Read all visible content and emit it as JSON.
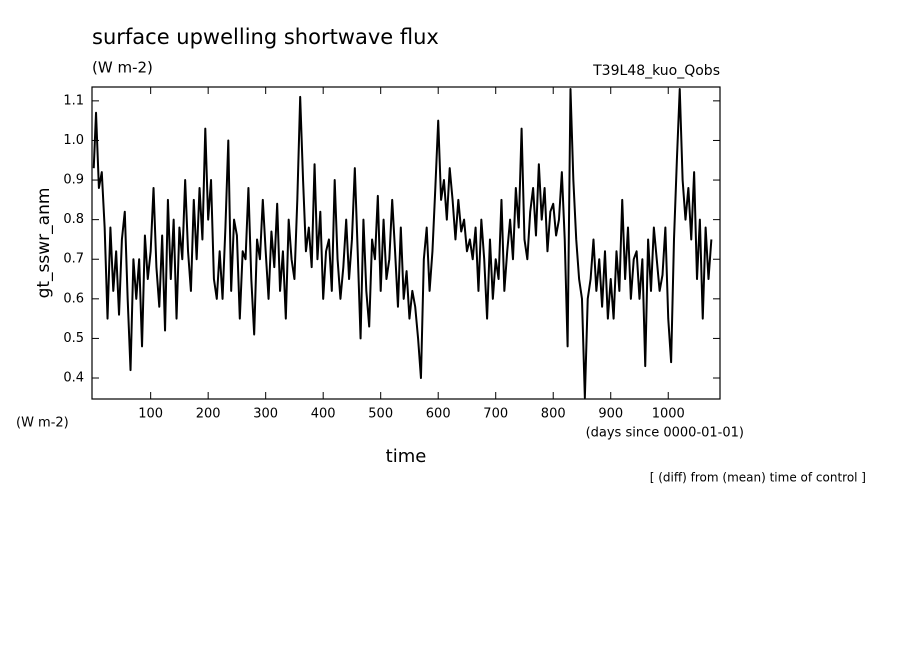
{
  "chart_data": {
    "type": "line",
    "title": "surface upwelling shortwave flux",
    "subtitle": "(W m-2)",
    "run_label": "T39L48_kuo_Qobs",
    "y_label": "gt_sswr_anm",
    "y_unit": "(W m-2)",
    "x_label": "time",
    "x_unit": "(days since 0000-01-01)",
    "note": "[ (diff) from (mean) time of control ]",
    "color": "#000000",
    "xlim": [
      -2,
      1090
    ],
    "ylim": [
      0.347,
      1.135
    ],
    "xticks": [
      100,
      200,
      300,
      400,
      500,
      600,
      700,
      800,
      900,
      1000
    ],
    "yticks": [
      0.4,
      0.5,
      0.6,
      0.7,
      0.8,
      0.9,
      {
        "value": 1,
        "label": "1.0"
      },
      1.1
    ],
    "x": [
      1,
      5,
      10,
      15,
      20,
      25,
      30,
      35,
      40,
      45,
      50,
      55,
      60,
      65,
      70,
      75,
      80,
      85,
      90,
      95,
      100,
      105,
      110,
      115,
      120,
      125,
      130,
      135,
      140,
      145,
      150,
      155,
      160,
      165,
      170,
      175,
      180,
      185,
      190,
      195,
      200,
      205,
      210,
      215,
      220,
      225,
      230,
      235,
      240,
      245,
      250,
      255,
      260,
      265,
      270,
      275,
      280,
      285,
      290,
      295,
      300,
      305,
      310,
      315,
      320,
      325,
      330,
      335,
      340,
      345,
      350,
      355,
      360,
      365,
      370,
      375,
      380,
      385,
      390,
      395,
      400,
      405,
      410,
      415,
      420,
      425,
      430,
      435,
      440,
      445,
      450,
      455,
      460,
      465,
      470,
      475,
      480,
      485,
      490,
      495,
      500,
      505,
      510,
      515,
      520,
      525,
      530,
      535,
      540,
      545,
      550,
      555,
      560,
      565,
      570,
      575,
      580,
      585,
      590,
      595,
      600,
      605,
      610,
      615,
      620,
      625,
      630,
      635,
      640,
      645,
      650,
      655,
      660,
      665,
      670,
      675,
      680,
      685,
      690,
      695,
      700,
      705,
      710,
      715,
      720,
      725,
      730,
      735,
      740,
      745,
      750,
      755,
      760,
      765,
      770,
      775,
      780,
      785,
      790,
      795,
      800,
      805,
      810,
      815,
      820,
      825,
      830,
      835,
      840,
      845,
      850,
      855,
      860,
      865,
      870,
      875,
      880,
      885,
      890,
      895,
      900,
      905,
      910,
      915,
      920,
      925,
      930,
      935,
      940,
      945,
      950,
      955,
      960,
      965,
      970,
      975,
      980,
      985,
      990,
      995,
      1000,
      1005,
      1010,
      1015,
      1020,
      1025,
      1030,
      1035,
      1040,
      1045,
      1050,
      1055,
      1060,
      1065,
      1070,
      1075
    ],
    "values": [
      0.93,
      1.07,
      0.88,
      0.92,
      0.78,
      0.55,
      0.78,
      0.62,
      0.72,
      0.56,
      0.75,
      0.82,
      0.6,
      0.42,
      0.7,
      0.6,
      0.7,
      0.48,
      0.76,
      0.65,
      0.72,
      0.88,
      0.68,
      0.58,
      0.76,
      0.52,
      0.85,
      0.65,
      0.8,
      0.55,
      0.78,
      0.7,
      0.9,
      0.72,
      0.62,
      0.85,
      0.7,
      0.88,
      0.75,
      1.03,
      0.8,
      0.9,
      0.65,
      0.6,
      0.72,
      0.6,
      0.78,
      1.0,
      0.62,
      0.8,
      0.76,
      0.55,
      0.72,
      0.7,
      0.88,
      0.65,
      0.51,
      0.75,
      0.7,
      0.85,
      0.72,
      0.6,
      0.77,
      0.68,
      0.84,
      0.62,
      0.72,
      0.55,
      0.8,
      0.7,
      0.65,
      0.85,
      1.11,
      0.9,
      0.72,
      0.78,
      0.68,
      0.94,
      0.7,
      0.82,
      0.6,
      0.72,
      0.75,
      0.62,
      0.9,
      0.7,
      0.6,
      0.68,
      0.8,
      0.65,
      0.75,
      0.93,
      0.72,
      0.5,
      0.8,
      0.62,
      0.53,
      0.75,
      0.7,
      0.86,
      0.62,
      0.8,
      0.65,
      0.7,
      0.85,
      0.72,
      0.58,
      0.78,
      0.6,
      0.67,
      0.55,
      0.62,
      0.58,
      0.5,
      0.4,
      0.7,
      0.78,
      0.62,
      0.72,
      0.88,
      1.05,
      0.85,
      0.9,
      0.8,
      0.93,
      0.85,
      0.75,
      0.85,
      0.77,
      0.8,
      0.72,
      0.75,
      0.7,
      0.78,
      0.62,
      0.8,
      0.7,
      0.55,
      0.75,
      0.6,
      0.7,
      0.65,
      0.85,
      0.62,
      0.72,
      0.8,
      0.7,
      0.88,
      0.78,
      1.03,
      0.75,
      0.7,
      0.82,
      0.88,
      0.76,
      0.94,
      0.8,
      0.88,
      0.72,
      0.82,
      0.84,
      0.76,
      0.8,
      0.92,
      0.75,
      0.48,
      1.13,
      0.9,
      0.75,
      0.65,
      0.6,
      0.35,
      0.6,
      0.65,
      0.75,
      0.62,
      0.7,
      0.58,
      0.72,
      0.55,
      0.65,
      0.55,
      0.72,
      0.62,
      0.85,
      0.65,
      0.78,
      0.6,
      0.7,
      0.72,
      0.6,
      0.7,
      0.43,
      0.75,
      0.62,
      0.78,
      0.7,
      0.62,
      0.66,
      0.78,
      0.55,
      0.44,
      0.75,
      0.95,
      1.13,
      0.9,
      0.8,
      0.88,
      0.75,
      0.92,
      0.65,
      0.8,
      0.55,
      0.78,
      0.65,
      0.75
    ]
  }
}
